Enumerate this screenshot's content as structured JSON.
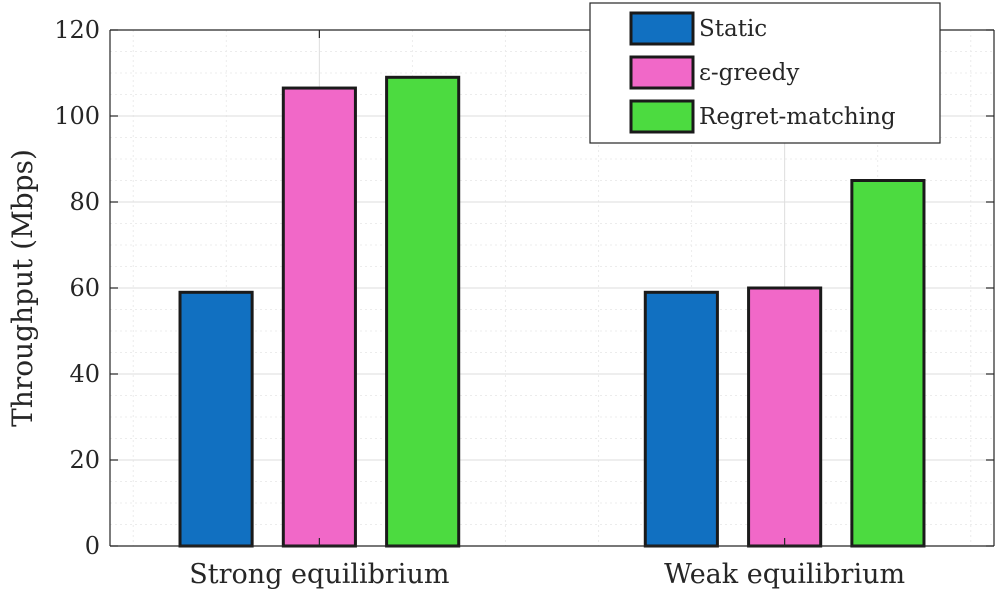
{
  "chart_data": {
    "type": "bar",
    "title": "",
    "xlabel": "",
    "ylabel": "Throughput (Mbps)",
    "ylim": [
      0,
      120
    ],
    "yticks": [
      "0",
      "20",
      "40",
      "60",
      "80",
      "100",
      "120"
    ],
    "categories": [
      "Strong equilibrium",
      "Weak equilibrium"
    ],
    "grid": true,
    "legend_position": "top-right",
    "series": [
      {
        "name": "Static",
        "color": "#1170c1",
        "values": [
          59,
          59
        ]
      },
      {
        "name": "ε-greedy",
        "color": "#f168c8",
        "values": [
          106.5,
          60
        ]
      },
      {
        "name": "Regret-matching",
        "color": "#4cdb40",
        "values": [
          109,
          85
        ]
      }
    ]
  }
}
